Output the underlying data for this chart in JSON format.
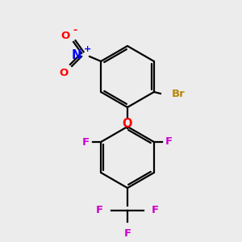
{
  "bg_color": "#ececec",
  "bond_color": "#000000",
  "atom_colors": {
    "Br": "#b8860b",
    "O": "#ff0000",
    "N": "#0000ff",
    "F": "#cc00cc"
  },
  "lw": 1.6,
  "fontsize": 9.5
}
